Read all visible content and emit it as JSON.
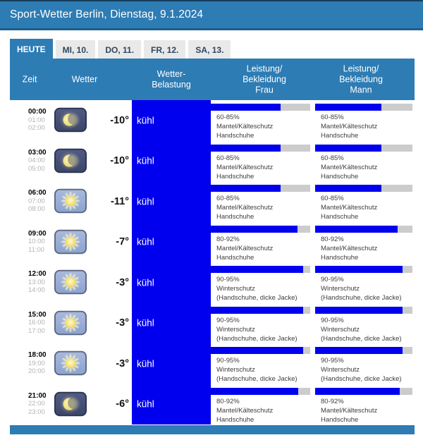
{
  "colors": {
    "accent": "#2d7cb4",
    "blue": "#0000ee",
    "track": "#cccccc"
  },
  "header": {
    "title": "Sport-Wetter Berlin, Dienstag, 9.1.2024"
  },
  "tabs": [
    {
      "label": "HEUTE",
      "active": true
    },
    {
      "label": "MI, 10.",
      "active": false
    },
    {
      "label": "DO, 11.",
      "active": false
    },
    {
      "label": "FR, 12.",
      "active": false
    },
    {
      "label": "SA, 13.",
      "active": false
    }
  ],
  "table": {
    "headers": {
      "zeit": "Zeit",
      "wetter": "Wetter",
      "belastung_lines": [
        "Wetter-",
        "Belastung"
      ],
      "frau_lines": [
        "Leistung/",
        "Bekleidung",
        "Frau"
      ],
      "mann_lines": [
        "Leistung/",
        "Bekleidung",
        "Mann"
      ]
    },
    "rows": [
      {
        "times": [
          "00:00",
          "01:00",
          "02:00"
        ],
        "icon": "moon",
        "temp": "-10°",
        "belastung": "kühl",
        "frau": {
          "percent": "60-85%",
          "items": [
            "Mantel/Kälteschutz",
            "Handschuhe"
          ],
          "fill": 70
        },
        "mann": {
          "percent": "60-85%",
          "items": [
            "Mantel/Kälteschutz",
            "Handschuhe"
          ],
          "fill": 68
        }
      },
      {
        "times": [
          "03:00",
          "04:00",
          "05:00"
        ],
        "icon": "moon",
        "temp": "-10°",
        "belastung": "kühl",
        "frau": {
          "percent": "60-85%",
          "items": [
            "Mantel/Kälteschutz",
            "Handschuhe"
          ],
          "fill": 70
        },
        "mann": {
          "percent": "60-85%",
          "items": [
            "Mantel/Kälteschutz",
            "Handschuhe"
          ],
          "fill": 68
        }
      },
      {
        "times": [
          "06:00",
          "07:00",
          "08:00"
        ],
        "icon": "sun",
        "temp": "-11°",
        "belastung": "kühl",
        "frau": {
          "percent": "60-85%",
          "items": [
            "Mantel/Kälteschutz",
            "Handschuhe"
          ],
          "fill": 70
        },
        "mann": {
          "percent": "60-85%",
          "items": [
            "Mantel/Kälteschutz",
            "Handschuhe"
          ],
          "fill": 68
        }
      },
      {
        "times": [
          "09:00",
          "10:00",
          "11:00"
        ],
        "icon": "sun",
        "temp": "-7°",
        "belastung": "kühl",
        "frau": {
          "percent": "80-92%",
          "items": [
            "Mantel/Kälteschutz",
            "Handschuhe"
          ],
          "fill": 87
        },
        "mann": {
          "percent": "80-92%",
          "items": [
            "Mantel/Kälteschutz",
            "Handschuhe"
          ],
          "fill": 85
        }
      },
      {
        "times": [
          "12:00",
          "13:00",
          "14:00"
        ],
        "icon": "sun",
        "temp": "-3°",
        "belastung": "kühl",
        "frau": {
          "percent": "90-95%",
          "items": [
            "Winterschutz",
            "(Handschuhe, dicke Jacke)"
          ],
          "fill": 93
        },
        "mann": {
          "percent": "90-95%",
          "items": [
            "Winterschutz",
            "(Handschuhe, dicke Jacke)"
          ],
          "fill": 90
        }
      },
      {
        "times": [
          "15:00",
          "16:00",
          "17:00"
        ],
        "icon": "sun",
        "temp": "-3°",
        "belastung": "kühl",
        "frau": {
          "percent": "90-95%",
          "items": [
            "Winterschutz",
            "(Handschuhe, dicke Jacke)"
          ],
          "fill": 93
        },
        "mann": {
          "percent": "90-95%",
          "items": [
            "Winterschutz",
            "(Handschuhe, dicke Jacke)"
          ],
          "fill": 90
        }
      },
      {
        "times": [
          "18:00",
          "19:00",
          "20:00"
        ],
        "icon": "sun",
        "temp": "-3°",
        "belastung": "kühl",
        "frau": {
          "percent": "90-95%",
          "items": [
            "Winterschutz",
            "(Handschuhe, dicke Jacke)"
          ],
          "fill": 93
        },
        "mann": {
          "percent": "90-95%",
          "items": [
            "Winterschutz",
            "(Handschuhe, dicke Jacke)"
          ],
          "fill": 90
        }
      },
      {
        "times": [
          "21:00",
          "22:00",
          "23:00"
        ],
        "icon": "moon",
        "temp": "-6°",
        "belastung": "kühl",
        "frau": {
          "percent": "80-92%",
          "items": [
            "Mantel/Kälteschutz",
            "Handschuhe"
          ],
          "fill": 88
        },
        "mann": {
          "percent": "80-92%",
          "items": [
            "Mantel/Kälteschutz",
            "Handschuhe"
          ],
          "fill": 87
        }
      }
    ]
  }
}
